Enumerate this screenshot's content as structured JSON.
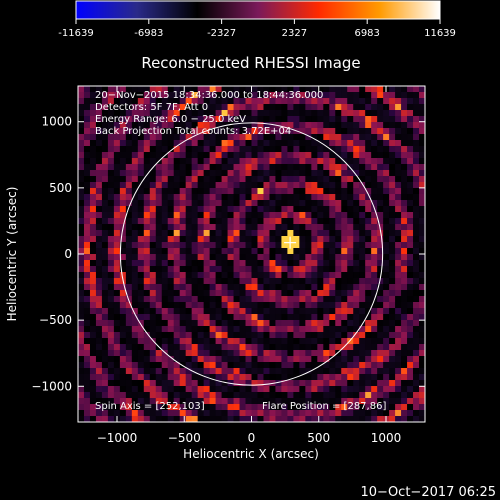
{
  "colorbar": {
    "ticks": [
      "-11639",
      "-6983",
      "-2327",
      "2327",
      "6983",
      "11639"
    ],
    "min": -11639,
    "max": 11639,
    "stops": [
      "#0000ff",
      "#2a2a8a",
      "#000000",
      "#7a1a5a",
      "#ff2a00",
      "#ff9a00",
      "#ffffff"
    ]
  },
  "chart_data": {
    "type": "heatmap",
    "title": "Reconstructed RHESSI Image",
    "xlabel": "Heliocentric X (arcsec)",
    "ylabel": "Heliocentric Y (arcsec)",
    "xlim": [
      -1290,
      1290
    ],
    "ylim": [
      -1270,
      1270
    ],
    "xticks": [
      -1000,
      -500,
      0,
      500,
      1000
    ],
    "yticks": [
      -1000,
      -500,
      0,
      500,
      1000
    ],
    "xtick_labels": [
      "−1000",
      "−500",
      "0",
      "500",
      "1000"
    ],
    "ytick_labels": [
      "−1000",
      "−500",
      "0",
      "500",
      "1000"
    ],
    "solar_limb_radius": 975,
    "flare_marker": [
      287,
      86
    ],
    "annotations": [
      "20−Nov−2015 18:34:36.000 to 18:44:36.000",
      "Detectors: 5F 7F, Att 0",
      "Energy Range: 6.0 − 25.0 keV",
      "Back Projection    Total counts: 3.72E+04"
    ],
    "spin_axis_text": "Spin Axis = [252,103]",
    "flare_position_text": "Flare Position = [287,86]"
  },
  "footer": {
    "date": "10−Oct−2017 06:25"
  }
}
